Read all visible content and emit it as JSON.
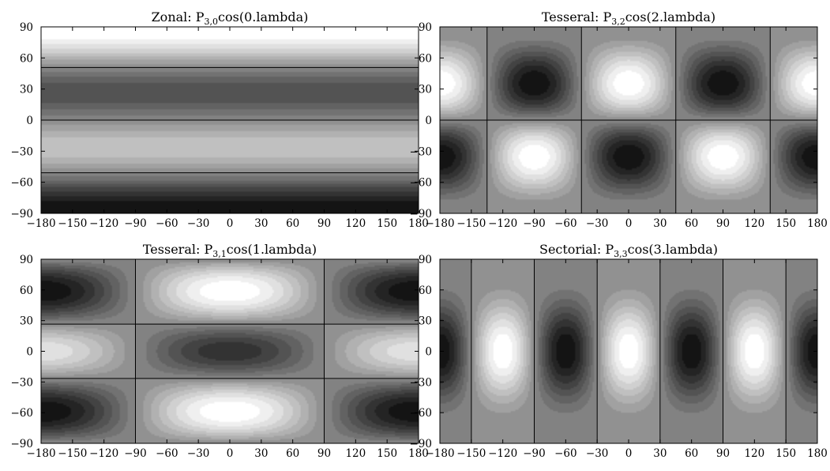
{
  "chart_data": [
    {
      "type": "heatmap",
      "title_prefix": "Zonal: P",
      "title_sub": "3,0",
      "title_suffix": "cos(0.lambda)",
      "n": 3,
      "m": 0,
      "x_ticks": [
        -180,
        -150,
        -120,
        -90,
        -60,
        -30,
        0,
        30,
        60,
        90,
        120,
        150,
        180
      ],
      "y_ticks": [
        90,
        60,
        30,
        0,
        -30,
        -60,
        -90
      ],
      "xlim": [
        -180,
        180
      ],
      "ylim": [
        -90,
        90
      ],
      "colormap": "grayscale"
    },
    {
      "type": "heatmap",
      "title_prefix": "Tesseral: P",
      "title_sub": "3,2",
      "title_suffix": "cos(2.lambda)",
      "n": 3,
      "m": 2,
      "x_ticks": [
        -180,
        -150,
        -120,
        -90,
        -60,
        -30,
        0,
        30,
        60,
        90,
        120,
        150,
        180
      ],
      "y_ticks": [
        90,
        60,
        30,
        0,
        -30,
        -60,
        -90
      ],
      "xlim": [
        -180,
        180
      ],
      "ylim": [
        -90,
        90
      ],
      "colormap": "grayscale"
    },
    {
      "type": "heatmap",
      "title_prefix": "Tesseral: P",
      "title_sub": "3,1",
      "title_suffix": "cos(1.lambda)",
      "n": 3,
      "m": 1,
      "x_ticks": [
        -180,
        -150,
        -120,
        -90,
        -60,
        -30,
        0,
        30,
        60,
        90,
        120,
        150,
        180
      ],
      "y_ticks": [
        90,
        60,
        30,
        0,
        -30,
        -60,
        -90
      ],
      "xlim": [
        -180,
        180
      ],
      "ylim": [
        -90,
        90
      ],
      "colormap": "grayscale"
    },
    {
      "type": "heatmap",
      "title_prefix": "Sectorial: P",
      "title_sub": "3,3",
      "title_suffix": "cos(3.lambda)",
      "n": 3,
      "m": 3,
      "x_ticks": [
        -180,
        -150,
        -120,
        -90,
        -60,
        -30,
        0,
        30,
        60,
        90,
        120,
        150,
        180
      ],
      "y_ticks": [
        90,
        60,
        30,
        0,
        -30,
        -60,
        -90
      ],
      "xlim": [
        -180,
        180
      ],
      "ylim": [
        -90,
        90
      ],
      "colormap": "grayscale"
    }
  ]
}
